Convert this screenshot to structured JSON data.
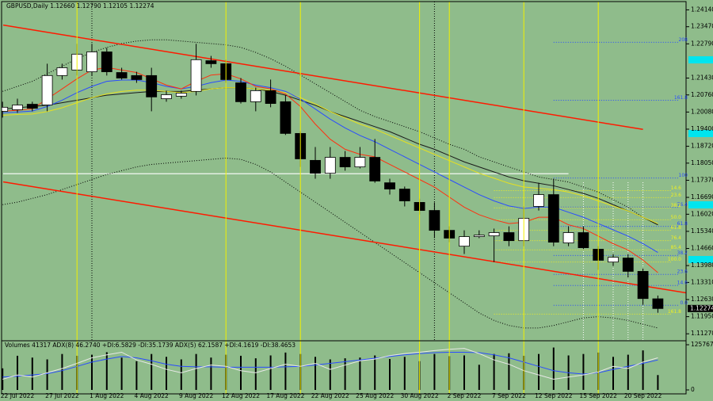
{
  "chart_data": [
    {
      "type": "candlestick",
      "title": "GBPUSD,Daily  1.12660 1.12790 1.12105 1.12274",
      "categories": [
        null,
        "22 Jul 2022",
        null,
        null,
        "27 Jul 2022",
        null,
        null,
        "1 Aug 2022",
        null,
        null,
        "4 Aug 2022",
        null,
        null,
        "9 Aug 2022",
        null,
        null,
        "12 Aug 2022",
        null,
        null,
        "17 Aug 2022",
        null,
        null,
        "22 Aug 2022",
        null,
        null,
        "25 Aug 2022",
        null,
        null,
        "30 Aug 2022",
        null,
        null,
        "2 Sep 2022",
        null,
        null,
        "7 Sep 2022",
        null,
        null,
        "12 Sep 2022",
        null,
        null,
        "15 Sep 2022",
        null,
        null,
        "20 Sep 2022",
        null
      ],
      "open": [
        1.2011,
        1.2017,
        1.2039,
        1.2036,
        1.2153,
        1.2175,
        1.2168,
        1.2247,
        1.2165,
        1.2153,
        1.2153,
        1.2061,
        1.2071,
        1.209,
        1.2212,
        1.22,
        1.2124,
        1.2049,
        1.2093,
        1.2049,
        1.1923,
        1.1816,
        1.1765,
        1.1828,
        1.179,
        1.1828,
        1.1727,
        1.1702,
        1.1649,
        1.1617,
        1.1538,
        1.1475,
        1.1513,
        1.1516,
        1.1529,
        1.1497,
        1.1633,
        1.168,
        1.1488,
        1.1529,
        1.1463,
        1.1412,
        1.1428,
        1.1375,
        1.1266
      ],
      "high": [
        1.2049,
        1.2061,
        1.2049,
        1.22,
        1.22,
        1.2279,
        1.2279,
        1.2263,
        1.2184,
        1.2168,
        1.2184,
        1.2093,
        1.2093,
        1.2279,
        1.2231,
        1.2216,
        1.2143,
        1.2105,
        1.2137,
        1.2074,
        1.1932,
        1.1869,
        1.1869,
        1.1853,
        1.1869,
        1.1901,
        1.1743,
        1.1712,
        1.1664,
        1.1649,
        1.1554,
        1.1538,
        1.1538,
        1.1545,
        1.1554,
        1.1633,
        1.1727,
        1.1743,
        1.1554,
        1.1554,
        1.1475,
        1.1444,
        1.1444,
        1.1387,
        1.1279
      ],
      "low": [
        1.1986,
        1.2005,
        1.2011,
        1.2011,
        1.2137,
        1.2153,
        1.2153,
        1.2153,
        1.2137,
        1.2124,
        1.2011,
        1.2049,
        1.2061,
        1.2074,
        1.2184,
        1.2124,
        1.2042,
        1.2011,
        1.2027,
        1.1917,
        1.179,
        1.1743,
        1.1743,
        1.1775,
        1.1784,
        1.1727,
        1.168,
        1.1633,
        1.1601,
        1.1507,
        1.1491,
        1.1444,
        1.1507,
        1.1412,
        1.1475,
        1.1475,
        1.1617,
        1.1475,
        1.1475,
        1.1463,
        1.1381,
        1.1396,
        1.135,
        1.1242,
        1.12105
      ],
      "close": [
        1.2027,
        1.2036,
        1.2023,
        1.2153,
        1.2184,
        1.2238,
        1.2247,
        1.2168,
        1.2143,
        1.2137,
        1.2068,
        1.2077,
        1.2083,
        1.2216,
        1.22,
        1.2137,
        1.2049,
        1.2093,
        1.2042,
        1.1923,
        1.1822,
        1.1765,
        1.1828,
        1.179,
        1.1828,
        1.1734,
        1.1702,
        1.1655,
        1.1617,
        1.1538,
        1.1507,
        1.1513,
        1.1519,
        1.1529,
        1.1497,
        1.1586,
        1.168,
        1.1491,
        1.1529,
        1.1469,
        1.1419,
        1.1431,
        1.1375,
        1.1267,
        1.12274
      ],
      "up_color": "#ffffff",
      "down_color": "#000000",
      "series": [
        {
          "color": "#000000",
          "style": "dotted",
          "values": [
            1.209,
            1.211,
            1.213,
            1.216,
            1.219,
            1.222,
            1.2245,
            1.2265,
            1.228,
            1.229,
            1.2295,
            1.2295,
            1.229,
            1.2285,
            1.228,
            1.2275,
            1.2265,
            1.2245,
            1.222,
            1.219,
            1.2155,
            1.212,
            1.2085,
            1.205,
            1.2015,
            1.199,
            1.197,
            1.195,
            1.193,
            1.1905,
            1.188,
            1.186,
            1.183,
            1.181,
            1.179,
            1.177,
            1.175,
            1.174,
            1.173,
            1.171,
            1.169,
            1.166,
            1.163,
            1.159,
            1.156
          ]
        },
        {
          "color": "#000000",
          "style": "dotted",
          "values": [
            1.164,
            1.165,
            1.1665,
            1.168,
            1.17,
            1.172,
            1.174,
            1.176,
            1.1775,
            1.179,
            1.18,
            1.1805,
            1.181,
            1.1815,
            1.182,
            1.1825,
            1.182,
            1.18,
            1.177,
            1.173,
            1.169,
            1.165,
            1.161,
            1.157,
            1.153,
            1.149,
            1.145,
            1.141,
            1.137,
            1.133,
            1.129,
            1.125,
            1.121,
            1.118,
            1.116,
            1.115,
            1.115,
            1.116,
            1.1175,
            1.119,
            1.1195,
            1.119,
            1.118,
            1.1165,
            1.115
          ]
        },
        {
          "color": "#1a1a1a",
          "style": "solid",
          "values": [
            1.202,
            1.2025,
            1.203,
            1.2035,
            1.2045,
            1.2055,
            1.2065,
            1.2075,
            1.208,
            1.2085,
            1.209,
            1.209,
            1.209,
            1.2095,
            1.21,
            1.2105,
            1.2105,
            1.21,
            1.209,
            1.2075,
            1.2055,
            1.2035,
            1.201,
            1.199,
            1.197,
            1.195,
            1.193,
            1.1905,
            1.188,
            1.186,
            1.1835,
            1.181,
            1.179,
            1.177,
            1.175,
            1.1735,
            1.1725,
            1.1715,
            1.17,
            1.1685,
            1.1665,
            1.164,
            1.1615,
            1.159,
            1.156
          ]
        },
        {
          "color": "#e6e020",
          "style": "solid",
          "values": [
            1.1995,
            1.1998,
            1.2,
            1.201,
            1.2025,
            1.2045,
            1.2065,
            1.208,
            1.209,
            1.2095,
            1.2095,
            1.209,
            1.2085,
            1.209,
            1.21,
            1.2105,
            1.2105,
            1.21,
            1.2095,
            1.2085,
            1.2065,
            1.204,
            1.201,
            1.1985,
            1.196,
            1.194,
            1.1915,
            1.189,
            1.1865,
            1.184,
            1.1815,
            1.179,
            1.1765,
            1.1745,
            1.1725,
            1.171,
            1.1705,
            1.17,
            1.169,
            1.1675,
            1.1655,
            1.1635,
            1.1615,
            1.159,
            1.1565
          ]
        },
        {
          "color": "#2a4cff",
          "style": "solid",
          "values": [
            1.2005,
            1.2008,
            1.2012,
            1.203,
            1.2055,
            1.2085,
            1.211,
            1.213,
            1.2135,
            1.2135,
            1.2125,
            1.211,
            1.21,
            1.211,
            1.2125,
            1.2135,
            1.213,
            1.2115,
            1.2105,
            1.209,
            1.206,
            1.202,
            1.198,
            1.1945,
            1.1915,
            1.189,
            1.186,
            1.183,
            1.18,
            1.177,
            1.174,
            1.171,
            1.168,
            1.1655,
            1.1635,
            1.1625,
            1.163,
            1.163,
            1.161,
            1.159,
            1.1565,
            1.154,
            1.1515,
            1.1485,
            1.145
          ]
        },
        {
          "color": "#ff3010",
          "style": "solid",
          "values": [
            1.2011,
            1.2015,
            1.202,
            1.206,
            1.21,
            1.214,
            1.2175,
            1.2185,
            1.2175,
            1.2165,
            1.214,
            1.2115,
            1.21,
            1.213,
            1.2155,
            1.216,
            1.214,
            1.211,
            1.21,
            1.208,
            1.203,
            1.196,
            1.19,
            1.186,
            1.184,
            1.183,
            1.18,
            1.177,
            1.174,
            1.171,
            1.167,
            1.163,
            1.16,
            1.158,
            1.1565,
            1.157,
            1.159,
            1.159,
            1.156,
            1.1545,
            1.1515,
            1.1485,
            1.146,
            1.142,
            1.137
          ]
        }
      ],
      "trendlines": [
        {
          "color": "#ff1a00",
          "x": [
            0,
            43
          ],
          "values": [
            1.2354,
            1.1939
          ]
        },
        {
          "color": "#ff1a00",
          "x": [
            0,
            44
          ],
          "values": [
            1.1731,
            1.1308
          ]
        }
      ],
      "horizontal_line": {
        "color": "#ffffff",
        "value": 1.1763
      },
      "fib_sets": [
        {
          "color": "#2a4cff",
          "levels": [
            {
              "label": "208",
              "value": 1.2285
            },
            {
              "label": "161.8",
              "value": 1.2055
            },
            {
              "label": "100",
              "value": 1.1746
            },
            {
              "label": "76.4",
              "value": 1.163
            },
            {
              "label": "61.8",
              "value": 1.1554
            },
            {
              "label": "38.2",
              "value": 1.1438
            },
            {
              "label": "23.6",
              "value": 1.1363
            },
            {
              "label": "14.6",
              "value": 1.1319
            },
            {
              "label": "0.0",
              "value": 1.124
            }
          ]
        },
        {
          "color": "#f0f020",
          "levels": [
            {
              "label": "14.6",
              "value": 1.1696
            },
            {
              "label": "23.6",
              "value": 1.1668
            },
            {
              "label": "38.2",
              "value": 1.1627
            },
            {
              "label": "50.0",
              "value": 1.158
            },
            {
              "label": "61.8",
              "value": 1.1538
            },
            {
              "label": "76.4",
              "value": 1.1497
            },
            {
              "label": "85.4",
              "value": 1.146
            },
            {
              "label": "100.0",
              "value": 1.1412
            },
            {
              "label": "161.8",
              "value": 1.1205
            }
          ]
        }
      ],
      "ylim": [
        1.1115,
        1.245
      ],
      "yticks": [
        {
          "value": 1.2414,
          "label": "1.24140"
        },
        {
          "value": 1.2347,
          "label": "1.23470"
        },
        {
          "value": 1.2279,
          "label": "1.22790"
        },
        {
          "value": 1.2143,
          "label": "1.21430"
        },
        {
          "value": 1.2076,
          "label": "1.20760"
        },
        {
          "value": 1.2008,
          "label": "1.20080"
        },
        {
          "value": 1.194,
          "label": "1.19400"
        },
        {
          "value": 1.1872,
          "label": "1.18720"
        },
        {
          "value": 1.1805,
          "label": "1.18050"
        },
        {
          "value": 1.1737,
          "label": "1.17370"
        },
        {
          "value": 1.1669,
          "label": "1.16690"
        },
        {
          "value": 1.1602,
          "label": "1.16020"
        },
        {
          "value": 1.1534,
          "label": "1.15340"
        },
        {
          "value": 1.1466,
          "label": "1.14660"
        },
        {
          "value": 1.1398,
          "label": "1.13980"
        },
        {
          "value": 1.1331,
          "label": "1.13310"
        },
        {
          "value": 1.1263,
          "label": "1.12630"
        },
        {
          "value": 1.1195,
          "label": "1.11950"
        },
        {
          "value": 1.1127,
          "label": "1.11270"
        }
      ]
    },
    {
      "type": "volume",
      "title": "Volumes 41317  ADX(8) 46.2740 +DI:6.5829 -DI:35.1739  ADX(5) 62.1587 +DI:4.1619 -DI:38.4653",
      "color": "#000000",
      "values": [
        60000,
        95000,
        90000,
        85000,
        100000,
        95000,
        98000,
        105000,
        90000,
        80000,
        100000,
        92000,
        85000,
        100000,
        90000,
        98000,
        95000,
        88000,
        96000,
        104000,
        100000,
        92000,
        85000,
        88000,
        90000,
        96000,
        86000,
        92000,
        80000,
        100000,
        94000,
        96000,
        70000,
        100000,
        102000,
        95000,
        100000,
        118000,
        96000,
        100000,
        104000,
        92000,
        98000,
        110000,
        41317
      ],
      "ylim": [
        0,
        125767
      ],
      "yticks": [
        0,
        125767
      ],
      "y2lim": [
        0,
        100
      ],
      "series": [
        {
          "color": "#2a4cff",
          "axis": "y2",
          "values": [
            30,
            32,
            35,
            38,
            45,
            55,
            65,
            72,
            78,
            75,
            68,
            60,
            55,
            54,
            54,
            53,
            53,
            53,
            53,
            54,
            55,
            58,
            62,
            66,
            70,
            74,
            78,
            82,
            85,
            87,
            88,
            88,
            87,
            82,
            75,
            65,
            55,
            45,
            40,
            37,
            40,
            48,
            55,
            62,
            70
          ]
        },
        {
          "color": "#e8e8e8",
          "axis": "y2",
          "values": [
            25,
            35,
            30,
            40,
            50,
            62,
            75,
            82,
            88,
            70,
            60,
            48,
            40,
            50,
            58,
            55,
            45,
            40,
            50,
            60,
            55,
            62,
            48,
            58,
            68,
            72,
            80,
            85,
            88,
            92,
            95,
            97,
            85,
            70,
            60,
            45,
            35,
            25,
            30,
            35,
            42,
            55,
            50,
            65,
            75
          ]
        }
      ]
    }
  ]
}
